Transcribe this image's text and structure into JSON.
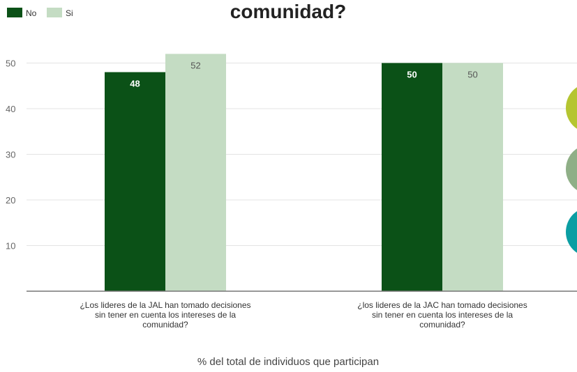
{
  "chart_data": {
    "type": "bar",
    "title": "comunidad?",
    "xlabel": "% del total de individuos que participan",
    "ylabel": "",
    "ylim": [
      0,
      52
    ],
    "yticks": [
      10,
      20,
      30,
      40,
      50
    ],
    "categories": [
      [
        "¿Los lideres de la JAL han tomado decisiones",
        "sin tener en cuenta los intereses de la",
        "comunidad?"
      ],
      [
        "¿los lideres de la JAC han tomado decisiones",
        "sin tener en cuenta los intereses de la",
        "comunidad?"
      ]
    ],
    "series": [
      {
        "name": "No",
        "values": [
          48,
          50
        ],
        "color": "#0b5117",
        "label_color": "#ffffff"
      },
      {
        "name": "Si",
        "values": [
          52,
          50
        ],
        "color": "#c4dcc3",
        "label_color": "#555555"
      }
    ],
    "legend": "top-left",
    "grid": true
  },
  "decorations": {
    "circle_colors": [
      "#b5c531",
      "#8faf87",
      "#0b9ea3"
    ]
  }
}
